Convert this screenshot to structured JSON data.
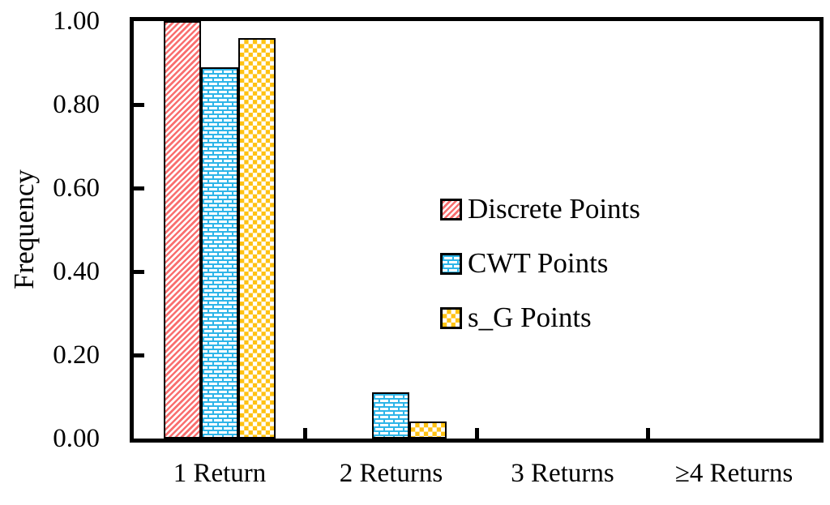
{
  "chart_data": {
    "type": "bar",
    "title": "",
    "xlabel": "",
    "ylabel": "Frequency",
    "ylim": [
      0,
      1.0
    ],
    "grid": false,
    "legend_position": "inside-center-right",
    "frame_color": "#000000",
    "background_color": "#FFFFFF",
    "categories": [
      "1 Return",
      "2 Returns",
      "3 Returns",
      "≥4 Returns"
    ],
    "series": [
      {
        "name": "Discrete Points",
        "pattern": "stripe",
        "color": "#F96F6F",
        "values": [
          1.0,
          0.0,
          0.0,
          0.0
        ]
      },
      {
        "name": "CWT Points",
        "pattern": "brick",
        "color": "#2EB5E8",
        "values": [
          0.89,
          0.11,
          0.0,
          0.0
        ]
      },
      {
        "name": "s_G Points",
        "pattern": "checker",
        "color": "#FFC213",
        "values": [
          0.96,
          0.04,
          0.0,
          0.0
        ]
      }
    ],
    "yticks": [
      {
        "label": "1.00",
        "value": 1.0
      },
      {
        "label": "0.80",
        "value": 0.8
      },
      {
        "label": "0.60",
        "value": 0.6
      },
      {
        "label": "0.40",
        "value": 0.4
      },
      {
        "label": "0.20",
        "value": 0.2
      },
      {
        "label": "0.00",
        "value": 0.0
      }
    ]
  }
}
